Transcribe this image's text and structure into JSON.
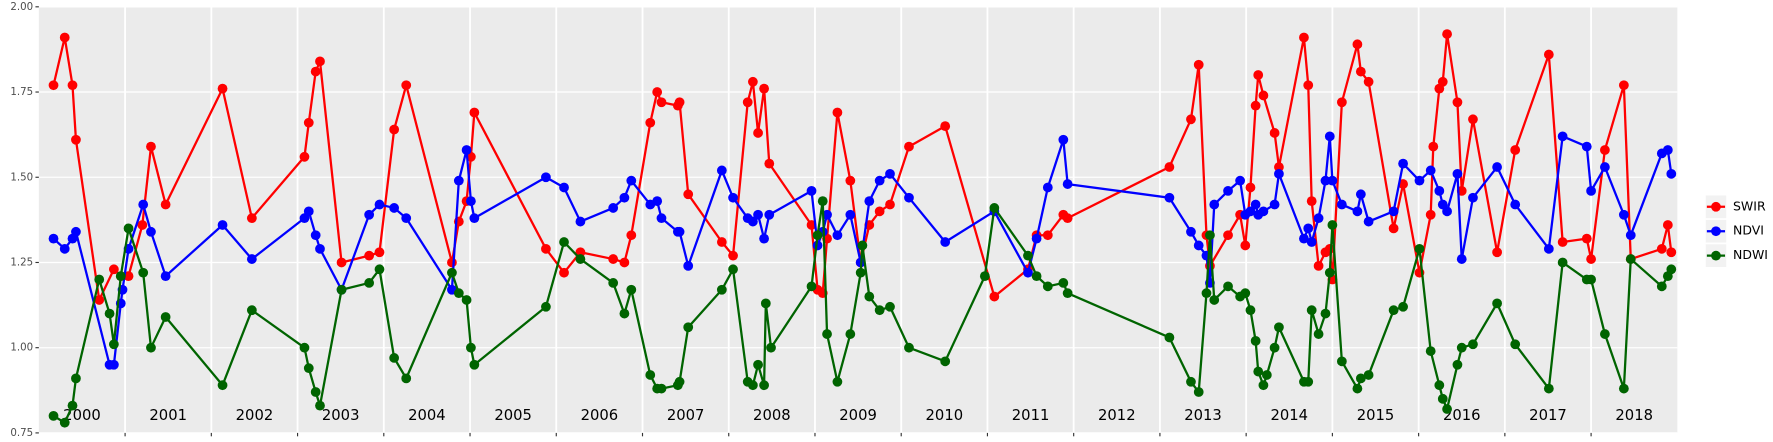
{
  "chart_data": {
    "type": "line",
    "ylim": [
      0.75,
      2.0
    ],
    "yticks": [
      0.75,
      {
        "value": 1,
        "label": "1.00"
      },
      1.25,
      {
        "value": 1.5,
        "label": "1.50"
      },
      1.75,
      {
        "value": 2,
        "label": "2.00"
      }
    ],
    "xlim": [
      2000,
      2019
    ],
    "xticks": [
      {
        "value": 2000.5,
        "label": "2000"
      },
      {
        "value": 2001.5,
        "label": "2001"
      },
      {
        "value": 2002.5,
        "label": "2002"
      },
      {
        "value": 2003.5,
        "label": "2003"
      },
      {
        "value": 2004.5,
        "label": "2004"
      },
      {
        "value": 2005.5,
        "label": "2005"
      },
      {
        "value": 2006.5,
        "label": "2006"
      },
      {
        "value": 2007.5,
        "label": "2007"
      },
      {
        "value": 2008.5,
        "label": "2008"
      },
      {
        "value": 2009.5,
        "label": "2009"
      },
      {
        "value": 2010.5,
        "label": "2010"
      },
      {
        "value": 2011.5,
        "label": "2011"
      },
      {
        "value": 2012.5,
        "label": "2012"
      },
      {
        "value": 2013.5,
        "label": "2013"
      },
      {
        "value": 2014.5,
        "label": "2014"
      },
      {
        "value": 2015.5,
        "label": "2015"
      },
      {
        "value": 2016.5,
        "label": "2016"
      },
      {
        "value": 2017.5,
        "label": "2017"
      },
      {
        "value": 2018.5,
        "label": "2018"
      }
    ],
    "xgrid": [
      2001,
      2002,
      2003,
      2004,
      2005,
      2006,
      2007,
      2008,
      2009,
      2010,
      2011,
      2012,
      2013,
      2014,
      2015,
      2016,
      2017,
      2018
    ],
    "grid": true,
    "legend": "right",
    "series": [
      {
        "name": "SWIR",
        "color": "#ff0000",
        "x": [
          2000.17,
          2000.3,
          2000.39,
          2000.43,
          2000.7,
          2000.87,
          2000.95,
          2001.04,
          2001.2,
          2001.3,
          2001.47,
          2002.13,
          2002.47,
          2003.08,
          2003.13,
          2003.21,
          2003.26,
          2003.51,
          2003.83,
          2003.95,
          2004.12,
          2004.26,
          2004.79,
          2004.87,
          2004.96,
          2005.01,
          2005.05,
          2005.88,
          2006.09,
          2006.28,
          2006.66,
          2006.79,
          2006.87,
          2007.09,
          2007.17,
          2007.22,
          2007.41,
          2007.43,
          2007.53,
          2007.92,
          2008.05,
          2008.22,
          2008.28,
          2008.34,
          2008.41,
          2008.47,
          2008.96,
          2009.03,
          2009.09,
          2009.14,
          2009.26,
          2009.41,
          2009.53,
          2009.63,
          2009.75,
          2009.87,
          2010.09,
          2010.51,
          2011.08,
          2011.47,
          2011.57,
          2011.7,
          2011.88,
          2011.93,
          2013.11,
          2013.36,
          2013.45,
          2013.54,
          2013.58,
          2013.79,
          2013.93,
          2013.99,
          2014.05,
          2014.11,
          2014.14,
          2014.2,
          2014.33,
          2014.38,
          2014.67,
          2014.72,
          2014.76,
          2014.84,
          2014.92,
          2014.97,
          2015.0,
          2015.11,
          2015.29,
          2015.33,
          2015.42,
          2015.71,
          2015.82,
          2016.01,
          2016.14,
          2016.17,
          2016.24,
          2016.28,
          2016.33,
          2016.45,
          2016.5,
          2016.63,
          2016.91,
          2017.12,
          2017.51,
          2017.67,
          2017.95,
          2018.0,
          2018.16,
          2018.38,
          2018.46,
          2018.82,
          2018.89,
          2018.93
        ],
        "values": [
          1.77,
          1.91,
          1.77,
          1.61,
          1.14,
          1.23,
          1.21,
          1.21,
          1.36,
          1.59,
          1.42,
          1.76,
          1.38,
          1.56,
          1.66,
          1.81,
          1.84,
          1.25,
          1.27,
          1.28,
          1.64,
          1.77,
          1.25,
          1.37,
          1.43,
          1.56,
          1.69,
          1.29,
          1.22,
          1.28,
          1.26,
          1.25,
          1.33,
          1.66,
          1.75,
          1.72,
          1.71,
          1.72,
          1.45,
          1.31,
          1.27,
          1.72,
          1.78,
          1.63,
          1.76,
          1.54,
          1.36,
          1.17,
          1.16,
          1.32,
          1.69,
          1.49,
          1.25,
          1.36,
          1.4,
          1.42,
          1.59,
          1.65,
          1.15,
          1.23,
          1.33,
          1.33,
          1.39,
          1.38,
          1.53,
          1.67,
          1.83,
          1.33,
          1.24,
          1.33,
          1.39,
          1.3,
          1.47,
          1.71,
          1.8,
          1.74,
          1.63,
          1.53,
          1.91,
          1.77,
          1.43,
          1.24,
          1.28,
          1.29,
          1.2,
          1.72,
          1.89,
          1.81,
          1.78,
          1.35,
          1.48,
          1.22,
          1.39,
          1.59,
          1.76,
          1.78,
          1.92,
          1.72,
          1.46,
          1.67,
          1.28,
          1.58,
          1.86,
          1.31,
          1.32,
          1.26,
          1.58,
          1.77,
          1.26,
          1.29,
          1.36,
          1.28
        ]
      },
      {
        "name": "NDVI",
        "color": "#0000ff",
        "x": [
          2000.17,
          2000.3,
          2000.39,
          2000.43,
          2000.82,
          2000.87,
          2000.95,
          2000.97,
          2001.04,
          2001.21,
          2001.3,
          2001.47,
          2002.13,
          2002.47,
          2003.08,
          2003.13,
          2003.21,
          2003.26,
          2003.51,
          2003.83,
          2003.95,
          2004.12,
          2004.26,
          2004.79,
          2004.87,
          2004.96,
          2005.01,
          2005.05,
          2005.88,
          2006.09,
          2006.28,
          2006.66,
          2006.79,
          2006.87,
          2007.09,
          2007.17,
          2007.22,
          2007.41,
          2007.43,
          2007.53,
          2007.92,
          2008.05,
          2008.22,
          2008.28,
          2008.34,
          2008.41,
          2008.47,
          2008.96,
          2009.03,
          2009.09,
          2009.14,
          2009.26,
          2009.41,
          2009.53,
          2009.63,
          2009.75,
          2009.87,
          2010.09,
          2010.51,
          2011.08,
          2011.47,
          2011.57,
          2011.7,
          2011.88,
          2011.93,
          2013.11,
          2013.36,
          2013.45,
          2013.54,
          2013.58,
          2013.63,
          2013.79,
          2013.93,
          2013.99,
          2014.05,
          2014.11,
          2014.14,
          2014.2,
          2014.33,
          2014.38,
          2014.67,
          2014.72,
          2014.76,
          2014.84,
          2014.92,
          2014.97,
          2015.0,
          2015.11,
          2015.29,
          2015.33,
          2015.42,
          2015.71,
          2015.82,
          2016.01,
          2016.14,
          2016.24,
          2016.28,
          2016.33,
          2016.45,
          2016.5,
          2016.63,
          2016.91,
          2017.12,
          2017.51,
          2017.67,
          2017.95,
          2018.0,
          2018.16,
          2018.38,
          2018.46,
          2018.82,
          2018.89,
          2018.93
        ],
        "values": [
          1.32,
          1.29,
          1.32,
          1.34,
          0.95,
          0.95,
          1.13,
          1.17,
          1.29,
          1.42,
          1.34,
          1.21,
          1.36,
          1.26,
          1.38,
          1.4,
          1.33,
          1.29,
          1.17,
          1.39,
          1.42,
          1.41,
          1.38,
          1.17,
          1.49,
          1.58,
          1.43,
          1.38,
          1.5,
          1.47,
          1.37,
          1.41,
          1.44,
          1.49,
          1.42,
          1.43,
          1.38,
          1.34,
          1.34,
          1.24,
          1.52,
          1.44,
          1.38,
          1.37,
          1.39,
          1.32,
          1.39,
          1.46,
          1.3,
          1.34,
          1.39,
          1.33,
          1.39,
          1.25,
          1.43,
          1.49,
          1.51,
          1.44,
          1.31,
          1.4,
          1.22,
          1.32,
          1.47,
          1.61,
          1.48,
          1.44,
          1.34,
          1.3,
          1.27,
          1.19,
          1.42,
          1.46,
          1.49,
          1.39,
          1.4,
          1.42,
          1.39,
          1.4,
          1.42,
          1.51,
          1.32,
          1.35,
          1.31,
          1.38,
          1.49,
          1.62,
          1.49,
          1.42,
          1.4,
          1.45,
          1.37,
          1.4,
          1.54,
          1.49,
          1.52,
          1.46,
          1.42,
          1.4,
          1.51,
          1.26,
          1.44,
          1.53,
          1.42,
          1.29,
          1.62,
          1.59,
          1.46,
          1.53,
          1.39,
          1.33,
          1.57,
          1.58,
          1.51
        ]
      },
      {
        "name": "NDWI",
        "color": "#006400",
        "x": [
          2000.17,
          2000.3,
          2000.39,
          2000.43,
          2000.7,
          2000.82,
          2000.87,
          2000.95,
          2001.04,
          2001.21,
          2001.3,
          2001.47,
          2002.13,
          2002.47,
          2003.08,
          2003.13,
          2003.21,
          2003.26,
          2003.51,
          2003.83,
          2003.95,
          2004.12,
          2004.26,
          2004.79,
          2004.87,
          2004.96,
          2005.01,
          2005.05,
          2005.88,
          2006.09,
          2006.28,
          2006.66,
          2006.79,
          2006.87,
          2007.09,
          2007.17,
          2007.22,
          2007.41,
          2007.43,
          2007.53,
          2007.92,
          2008.05,
          2008.22,
          2008.28,
          2008.34,
          2008.41,
          2008.43,
          2008.49,
          2008.96,
          2009.03,
          2009.09,
          2009.14,
          2009.26,
          2009.41,
          2009.53,
          2009.55,
          2009.63,
          2009.75,
          2009.87,
          2010.09,
          2010.51,
          2010.97,
          2011.08,
          2011.47,
          2011.57,
          2011.7,
          2011.88,
          2011.93,
          2013.11,
          2013.36,
          2013.45,
          2013.54,
          2013.58,
          2013.63,
          2013.79,
          2013.93,
          2013.99,
          2014.05,
          2014.11,
          2014.14,
          2014.2,
          2014.24,
          2014.33,
          2014.38,
          2014.67,
          2014.72,
          2014.76,
          2014.84,
          2014.92,
          2014.97,
          2015.0,
          2015.11,
          2015.29,
          2015.33,
          2015.42,
          2015.71,
          2015.82,
          2016.01,
          2016.14,
          2016.24,
          2016.28,
          2016.33,
          2016.45,
          2016.5,
          2016.63,
          2016.91,
          2017.12,
          2017.51,
          2017.67,
          2017.95,
          2018.0,
          2018.16,
          2018.38,
          2018.46,
          2018.82,
          2018.89,
          2018.93
        ],
        "values": [
          0.8,
          0.78,
          0.83,
          0.91,
          1.2,
          1.1,
          1.01,
          1.21,
          1.35,
          1.22,
          1.0,
          1.09,
          0.89,
          1.11,
          1.0,
          0.94,
          0.87,
          0.83,
          1.17,
          1.19,
          1.23,
          0.97,
          0.91,
          1.22,
          1.16,
          1.14,
          1.0,
          0.95,
          1.12,
          1.31,
          1.26,
          1.19,
          1.1,
          1.17,
          0.92,
          0.88,
          0.88,
          0.89,
          0.9,
          1.06,
          1.17,
          1.23,
          0.9,
          0.89,
          0.95,
          0.89,
          1.13,
          1.0,
          1.18,
          1.33,
          1.43,
          1.04,
          0.9,
          1.04,
          1.22,
          1.3,
          1.15,
          1.11,
          1.12,
          1.0,
          0.96,
          1.21,
          1.41,
          1.27,
          1.21,
          1.18,
          1.19,
          1.16,
          1.03,
          0.9,
          0.87,
          1.16,
          1.33,
          1.14,
          1.18,
          1.15,
          1.16,
          1.11,
          1.02,
          0.93,
          0.89,
          0.92,
          1.0,
          1.06,
          0.9,
          0.9,
          1.11,
          1.04,
          1.1,
          1.22,
          1.36,
          0.96,
          0.88,
          0.91,
          0.92,
          1.11,
          1.12,
          1.29,
          0.99,
          0.89,
          0.85,
          0.82,
          0.95,
          1.0,
          1.01,
          1.13,
          1.01,
          0.88,
          1.25,
          1.2,
          1.2,
          1.04,
          0.88,
          1.26,
          1.18,
          1.21,
          1.23
        ]
      }
    ]
  }
}
